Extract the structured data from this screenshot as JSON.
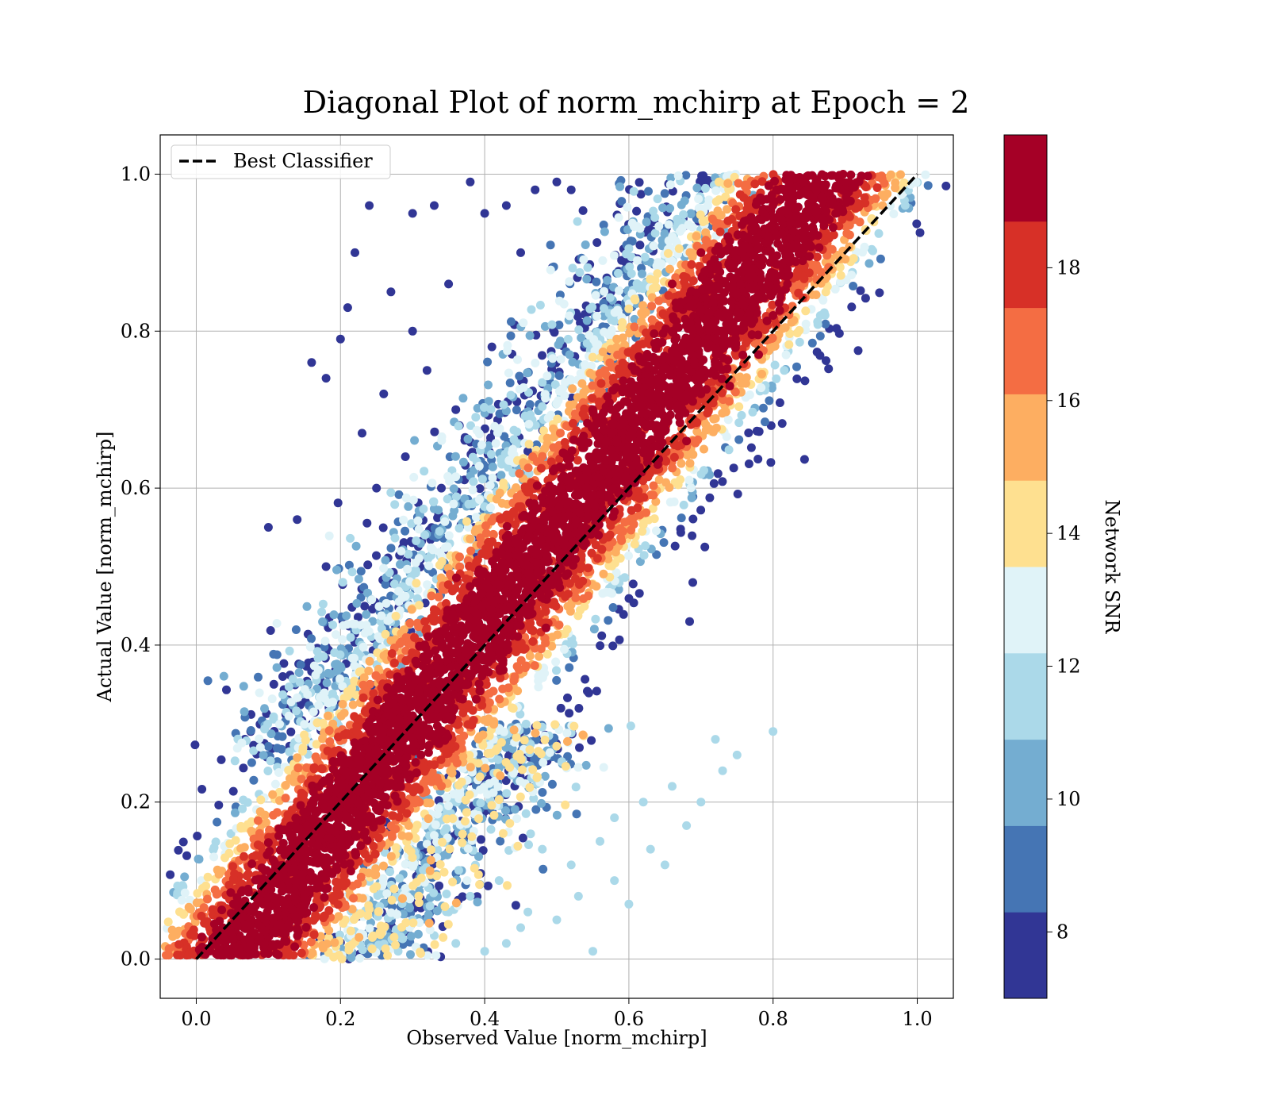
{
  "chart_data": {
    "type": "scatter",
    "title": "Diagonal Plot of norm_mchirp at Epoch = 2",
    "xlabel": "Observed Value [norm_mchirp]",
    "ylabel": "Actual Value [norm_mchirp]",
    "xlim": [
      -0.05,
      1.05
    ],
    "ylim": [
      -0.05,
      1.05
    ],
    "xticks": [
      "0.0",
      "0.2",
      "0.4",
      "0.6",
      "0.8",
      "1.0"
    ],
    "yticks": [
      "0.0",
      "0.2",
      "0.4",
      "0.6",
      "0.8",
      "1.0"
    ],
    "grid": true,
    "legend": {
      "position": "top-left",
      "entries": [
        "Best Classifier"
      ]
    },
    "reference_line": {
      "name": "Best Classifier",
      "style": "dashed",
      "color": "#000000",
      "x": [
        0,
        1
      ],
      "y": [
        0,
        1
      ]
    },
    "colorbar": {
      "label": "Network SNR",
      "range": [
        7,
        20
      ],
      "ticks": [
        "8",
        "10",
        "12",
        "14",
        "16",
        "18"
      ],
      "bins": [
        7,
        8.3,
        9.6,
        10.9,
        12.2,
        13.5,
        14.8,
        16.1,
        17.4,
        18.7,
        20
      ],
      "colors": [
        "#313695",
        "#4575b4",
        "#74add1",
        "#abd9e9",
        "#e0f3f8",
        "#fee090",
        "#fdae61",
        "#f46d43",
        "#d73027",
        "#a50026"
      ]
    },
    "series": [
      {
        "description_free": true,
        "points_high_snr_band": [
          [
            0.06,
            0.03
          ],
          [
            0.08,
            0.06
          ],
          [
            0.1,
            0.09
          ],
          [
            0.12,
            0.1
          ],
          [
            0.15,
            0.14
          ],
          [
            0.18,
            0.16
          ],
          [
            0.2,
            0.2
          ],
          [
            0.24,
            0.22
          ],
          [
            0.28,
            0.27
          ],
          [
            0.3,
            0.31
          ],
          [
            0.34,
            0.33
          ],
          [
            0.38,
            0.36
          ],
          [
            0.4,
            0.41
          ],
          [
            0.44,
            0.43
          ],
          [
            0.48,
            0.47
          ],
          [
            0.5,
            0.52
          ],
          [
            0.54,
            0.53
          ],
          [
            0.58,
            0.57
          ],
          [
            0.6,
            0.62
          ],
          [
            0.64,
            0.63
          ],
          [
            0.68,
            0.66
          ],
          [
            0.7,
            0.72
          ],
          [
            0.74,
            0.73
          ],
          [
            0.78,
            0.77
          ],
          [
            0.8,
            0.82
          ],
          [
            0.82,
            0.86
          ],
          [
            0.84,
            0.9
          ],
          [
            0.76,
            0.94
          ],
          [
            0.7,
            0.9
          ],
          [
            0.66,
            0.86
          ]
        ],
        "points_low_snr_upper": [
          [
            0.1,
            0.55
          ],
          [
            0.14,
            0.56
          ],
          [
            0.16,
            0.76
          ],
          [
            0.18,
            0.74
          ],
          [
            0.2,
            0.79
          ],
          [
            0.22,
            0.9
          ],
          [
            0.24,
            0.96
          ],
          [
            0.27,
            0.85
          ],
          [
            0.3,
            0.95
          ],
          [
            0.33,
            0.96
          ],
          [
            0.38,
            0.99
          ],
          [
            0.4,
            0.95
          ],
          [
            0.43,
            0.96
          ],
          [
            0.47,
            0.98
          ],
          [
            0.5,
            0.99
          ],
          [
            0.52,
            0.98
          ],
          [
            0.21,
            0.83
          ],
          [
            0.26,
            0.72
          ],
          [
            0.3,
            0.8
          ],
          [
            0.35,
            0.86
          ],
          [
            0.36,
            0.7
          ],
          [
            0.41,
            0.78
          ],
          [
            0.45,
            0.9
          ],
          [
            0.25,
            0.6
          ],
          [
            0.29,
            0.64
          ],
          [
            0.32,
            0.75
          ],
          [
            0.18,
            0.5
          ],
          [
            0.12,
            0.36
          ],
          [
            0.23,
            0.67
          ],
          [
            0.34,
            0.6
          ]
        ],
        "points_low_snr_lower": [
          [
            0.28,
            0.01
          ],
          [
            0.3,
            0.05
          ],
          [
            0.33,
            0.03
          ],
          [
            0.36,
            0.02
          ],
          [
            0.4,
            0.01
          ],
          [
            0.43,
            0.02
          ],
          [
            0.46,
            0.06
          ],
          [
            0.5,
            0.05
          ],
          [
            0.55,
            0.01
          ],
          [
            0.58,
            0.1
          ],
          [
            0.6,
            0.07
          ],
          [
            0.63,
            0.14
          ],
          [
            0.65,
            0.12
          ],
          [
            0.68,
            0.17
          ],
          [
            0.7,
            0.2
          ],
          [
            0.73,
            0.24
          ],
          [
            0.75,
            0.26
          ],
          [
            0.8,
            0.29
          ],
          [
            0.38,
            0.08
          ],
          [
            0.42,
            0.1
          ],
          [
            0.52,
            0.12
          ],
          [
            0.48,
            0.14
          ],
          [
            0.62,
            0.2
          ],
          [
            0.56,
            0.15
          ],
          [
            0.45,
            0.04
          ],
          [
            0.35,
            0.06
          ],
          [
            0.66,
            0.22
          ],
          [
            0.72,
            0.28
          ],
          [
            0.58,
            0.18
          ],
          [
            0.53,
            0.08
          ]
        ]
      }
    ]
  }
}
